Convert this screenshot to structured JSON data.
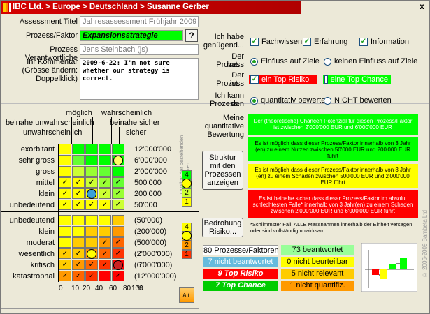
{
  "window": {
    "title": "IBC Ltd. > Europe > Deutschland > Susanne Gerber",
    "close_label": "x"
  },
  "form": {
    "assessment_title_label": "Assessment Titel",
    "assessment_title_value": "Jahresassessment Frühjahr 2009",
    "prozess_label": "Prozess/Faktor",
    "prozess_value": "Expansionsstrategie",
    "help_label": "?",
    "verantwortlich_label": "Prozess Verantwortliche",
    "verantwortlich_value": "Jens Steinbach (js)",
    "kommentar_label_1": "Ihr Kommentar",
    "kommentar_label_2": "(Grösse ändern:",
    "kommentar_label_3": "Doppelklick)",
    "kommentar_value": "2009-6-22: I'm not sure whether our strategy is correct."
  },
  "right": {
    "genuegend_label_1": "Ich habe",
    "genuegend_label_2": "genügend...",
    "checks": [
      {
        "label": "Fachwissen",
        "checked": true
      },
      {
        "label": "Erfahrung",
        "checked": true
      },
      {
        "label": "Information",
        "checked": true
      }
    ],
    "prozess_hat_label_1": "Der Prozess",
    "prozess_hat_label_2": "hat...",
    "einfluss_opt1": "Einfluss auf Ziele",
    "einfluss_opt2": "keinen Einfluss auf Ziele",
    "prozess_ist_label_1": "Der Prozess",
    "prozess_ist_label_2": "ist...",
    "top_risiko": "ein Top Risiko",
    "top_chance": "eine Top Chance",
    "bewerten_label_1": "Ich kann den",
    "bewerten_label_2": "Prozess...",
    "bewerten_opt1": "quantitativ bewerten",
    "bewerten_opt2": "NICHT bewerten",
    "meine_label_1": "Meine",
    "meine_label_2": "quantitative",
    "meine_label_3": "Bewertung",
    "bar1": "Der (theoretische) Chancen Potenzial für diesen Prozess/Faktor ist zwischen 2'000'000 EUR und 6'000'000 EUR",
    "bar2": "Es ist möglich dass dieser Prozess/Faktor innerhalb von 3 Jahr (en) zu einem Nutzen zwischen 50'000 EUR und 200'000 EUR führt",
    "bar3": "Es ist möglich dass dieser Prozess/Faktor innerhalb von 3 Jahr (en) zu einem Schaden zwischen 500'000 EUR und 2'000'000 EUR führt",
    "bar4": "Es ist beinahe sicher dass dieser Prozess/Faktor im absolut schlechtesten Falle* innerhalb von 3 Jahr(en) zu einem Schaden zwischen 2'000'000 EUR und 6'000'000 EUR führt",
    "footnote": "*Schlimmster Fall: ALLE Massnahmen innerhalb der Einheit versagen oder sind vollständig unwirksam.",
    "struktur_button": "Struktur mit den Prozessen anzeigen",
    "bedrohung_button": "Bedrohung Risiko..."
  },
  "stats": {
    "total": "80 Prozesse/Faktoren",
    "beantwortet": "73 beantwortet",
    "nicht_beantwortet": "7 nicht beantwortet",
    "nicht_beurteilbar": "0 nicht beurteilbar",
    "top_risiko": "9 Top Risiko",
    "nicht_relevant": "5 nicht relevant",
    "top_chance": "7 Top Chance",
    "nicht_quantifiz": "1 nicht quantifiz."
  },
  "matrix": {
    "prob_labels": [
      "möglich",
      "wahrscheinlich",
      "beinahe unwahrscheinlich",
      "beinahe sicher",
      "unwahrscheinlich",
      "sicher"
    ],
    "opp_rows": [
      "exorbitant",
      "sehr gross",
      "gross",
      "mittel",
      "klein",
      "unbedeutend"
    ],
    "opp_values": [
      "12'000'000",
      "6'000'000",
      "2'000'000",
      "500'000",
      "200'000",
      "50'000"
    ],
    "risk_rows": [
      "unbedeutend",
      "klein",
      "moderat",
      "wesentlich",
      "kritisch",
      "katastrophal"
    ],
    "risk_values": [
      "(50'000)",
      "(200'000)",
      "(500'000)",
      "(2'000'000)",
      "(6'000'000)",
      "(12'000'000)"
    ],
    "x_ticks": [
      "0",
      "10",
      "20",
      "40",
      "60",
      "80",
      "100",
      "%"
    ],
    "quality_label": "Qualität der bestehenden Massnahmen",
    "opp_scale": [
      "4",
      "3",
      "2",
      "1"
    ],
    "risk_scale": [
      "4",
      "3",
      "2",
      "1"
    ],
    "alt_label": "Alt.",
    "check_mark": "✓"
  },
  "copyright": "© 2006-2009 Bambeta Ltd",
  "colors": {
    "title_red": "#d40000",
    "green": "#00ff00",
    "red": "#ff0000",
    "yellow": "#ffff00",
    "orange": "#ff9900",
    "blue": "#3aa0d8"
  }
}
